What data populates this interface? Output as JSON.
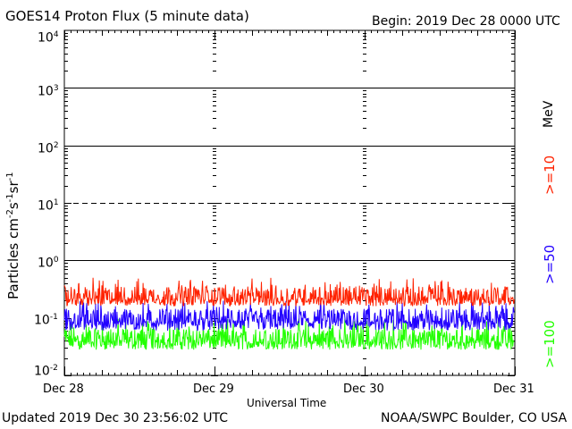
{
  "header": {
    "title": "GOES14 Proton Flux (5 minute data)",
    "begin": "Begin: 2019 Dec 28 0000 UTC"
  },
  "footer": {
    "updated": "Updated 2019 Dec 30 23:56:02 UTC",
    "credit": "NOAA/SWPC Boulder, CO USA"
  },
  "chart_data": {
    "type": "line",
    "title": "GOES14 Proton Flux (5 minute data)",
    "xlabel": "Universal Time",
    "ylabel_main": "Particles cm",
    "ylabel_units": {
      "exp1": "-2",
      "mid1": "s",
      "exp2": "-1",
      "mid2": "sr",
      "exp3": "-1"
    },
    "x_ticks": [
      "Dec 28",
      "Dec 29",
      "Dec 30",
      "Dec 31"
    ],
    "y_scale": "log",
    "ylim": [
      0.01,
      10000
    ],
    "y_ticks": [
      {
        "base": "10",
        "exp": "-2"
      },
      {
        "base": "10",
        "exp": "-1"
      },
      {
        "base": "10",
        "exp": "0"
      },
      {
        "base": "10",
        "exp": "1"
      },
      {
        "base": "10",
        "exp": "2"
      },
      {
        "base": "10",
        "exp": "3"
      },
      {
        "base": "10",
        "exp": "4"
      }
    ],
    "x_range_days": [
      0,
      3
    ],
    "threshold_lines": [
      {
        "value": 1,
        "style": "solid"
      },
      {
        "value": 10,
        "style": "dashed"
      },
      {
        "value": 100,
        "style": "solid"
      },
      {
        "value": 1000,
        "style": "solid"
      }
    ],
    "unit_label": "MeV",
    "series": [
      {
        "name": ">=10",
        "color": "#ff2200",
        "typical": 0.22,
        "spread_low": 0.16,
        "spread_high": 0.5
      },
      {
        "name": ">=50",
        "color": "#2200ff",
        "typical": 0.09,
        "spread_low": 0.06,
        "spread_high": 0.2
      },
      {
        "name": ">=100",
        "color": "#22ff00",
        "typical": 0.04,
        "spread_low": 0.028,
        "spread_high": 0.1
      }
    ]
  }
}
